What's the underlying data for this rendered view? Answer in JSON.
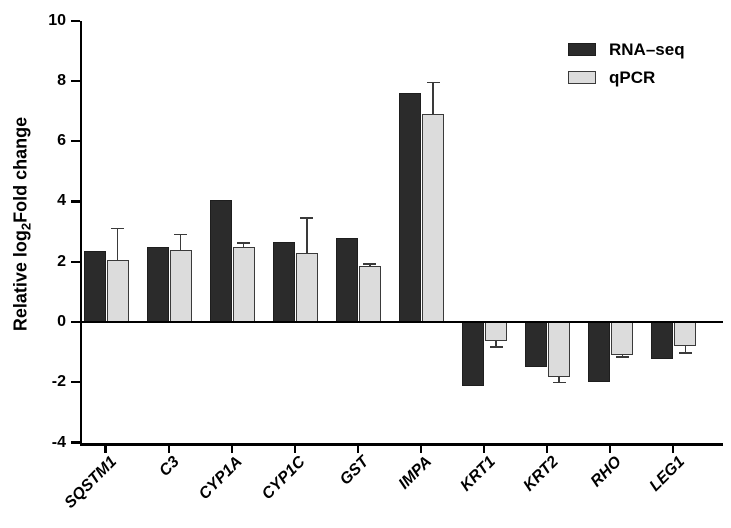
{
  "chart_data": {
    "type": "bar",
    "title": "",
    "ylabel": "Relative log2Fold change",
    "ylabel_parts": {
      "prefix": "Relative log",
      "sub": "2",
      "suffix": "Fold change"
    },
    "xlabel": "",
    "categories": [
      "SQSTM1",
      "C3",
      "CYP1A",
      "CYP1C",
      "GST",
      "IMPA",
      "KRT1",
      "KRT2",
      "RHO",
      "LEG1"
    ],
    "series": [
      {
        "name": "RNA–seq",
        "color": "#2b2b2b",
        "border_color": "#1e1e1e",
        "values": [
          2.35,
          2.5,
          4.05,
          2.65,
          2.8,
          7.6,
          -2.1,
          -1.45,
          -1.95,
          -1.2
        ]
      },
      {
        "name": "qPCR",
        "color": "#dcdcdc",
        "border_color": "#3a3a3a",
        "values": [
          2.05,
          2.4,
          2.5,
          2.3,
          1.85,
          6.9,
          -0.6,
          -1.8,
          -1.05,
          -0.75
        ],
        "errors": [
          1.05,
          0.5,
          0.12,
          1.15,
          0.08,
          1.05,
          0.22,
          0.2,
          0.1,
          0.27
        ],
        "error_color": "#3a3a3a"
      }
    ],
    "yticks": [
      10,
      8,
      6,
      4,
      2,
      0,
      -2,
      -4
    ],
    "ylim": [
      -4,
      10
    ],
    "grid": false,
    "legend_position": "top-right",
    "axis_color": "#000000",
    "background": "#ffffff"
  }
}
